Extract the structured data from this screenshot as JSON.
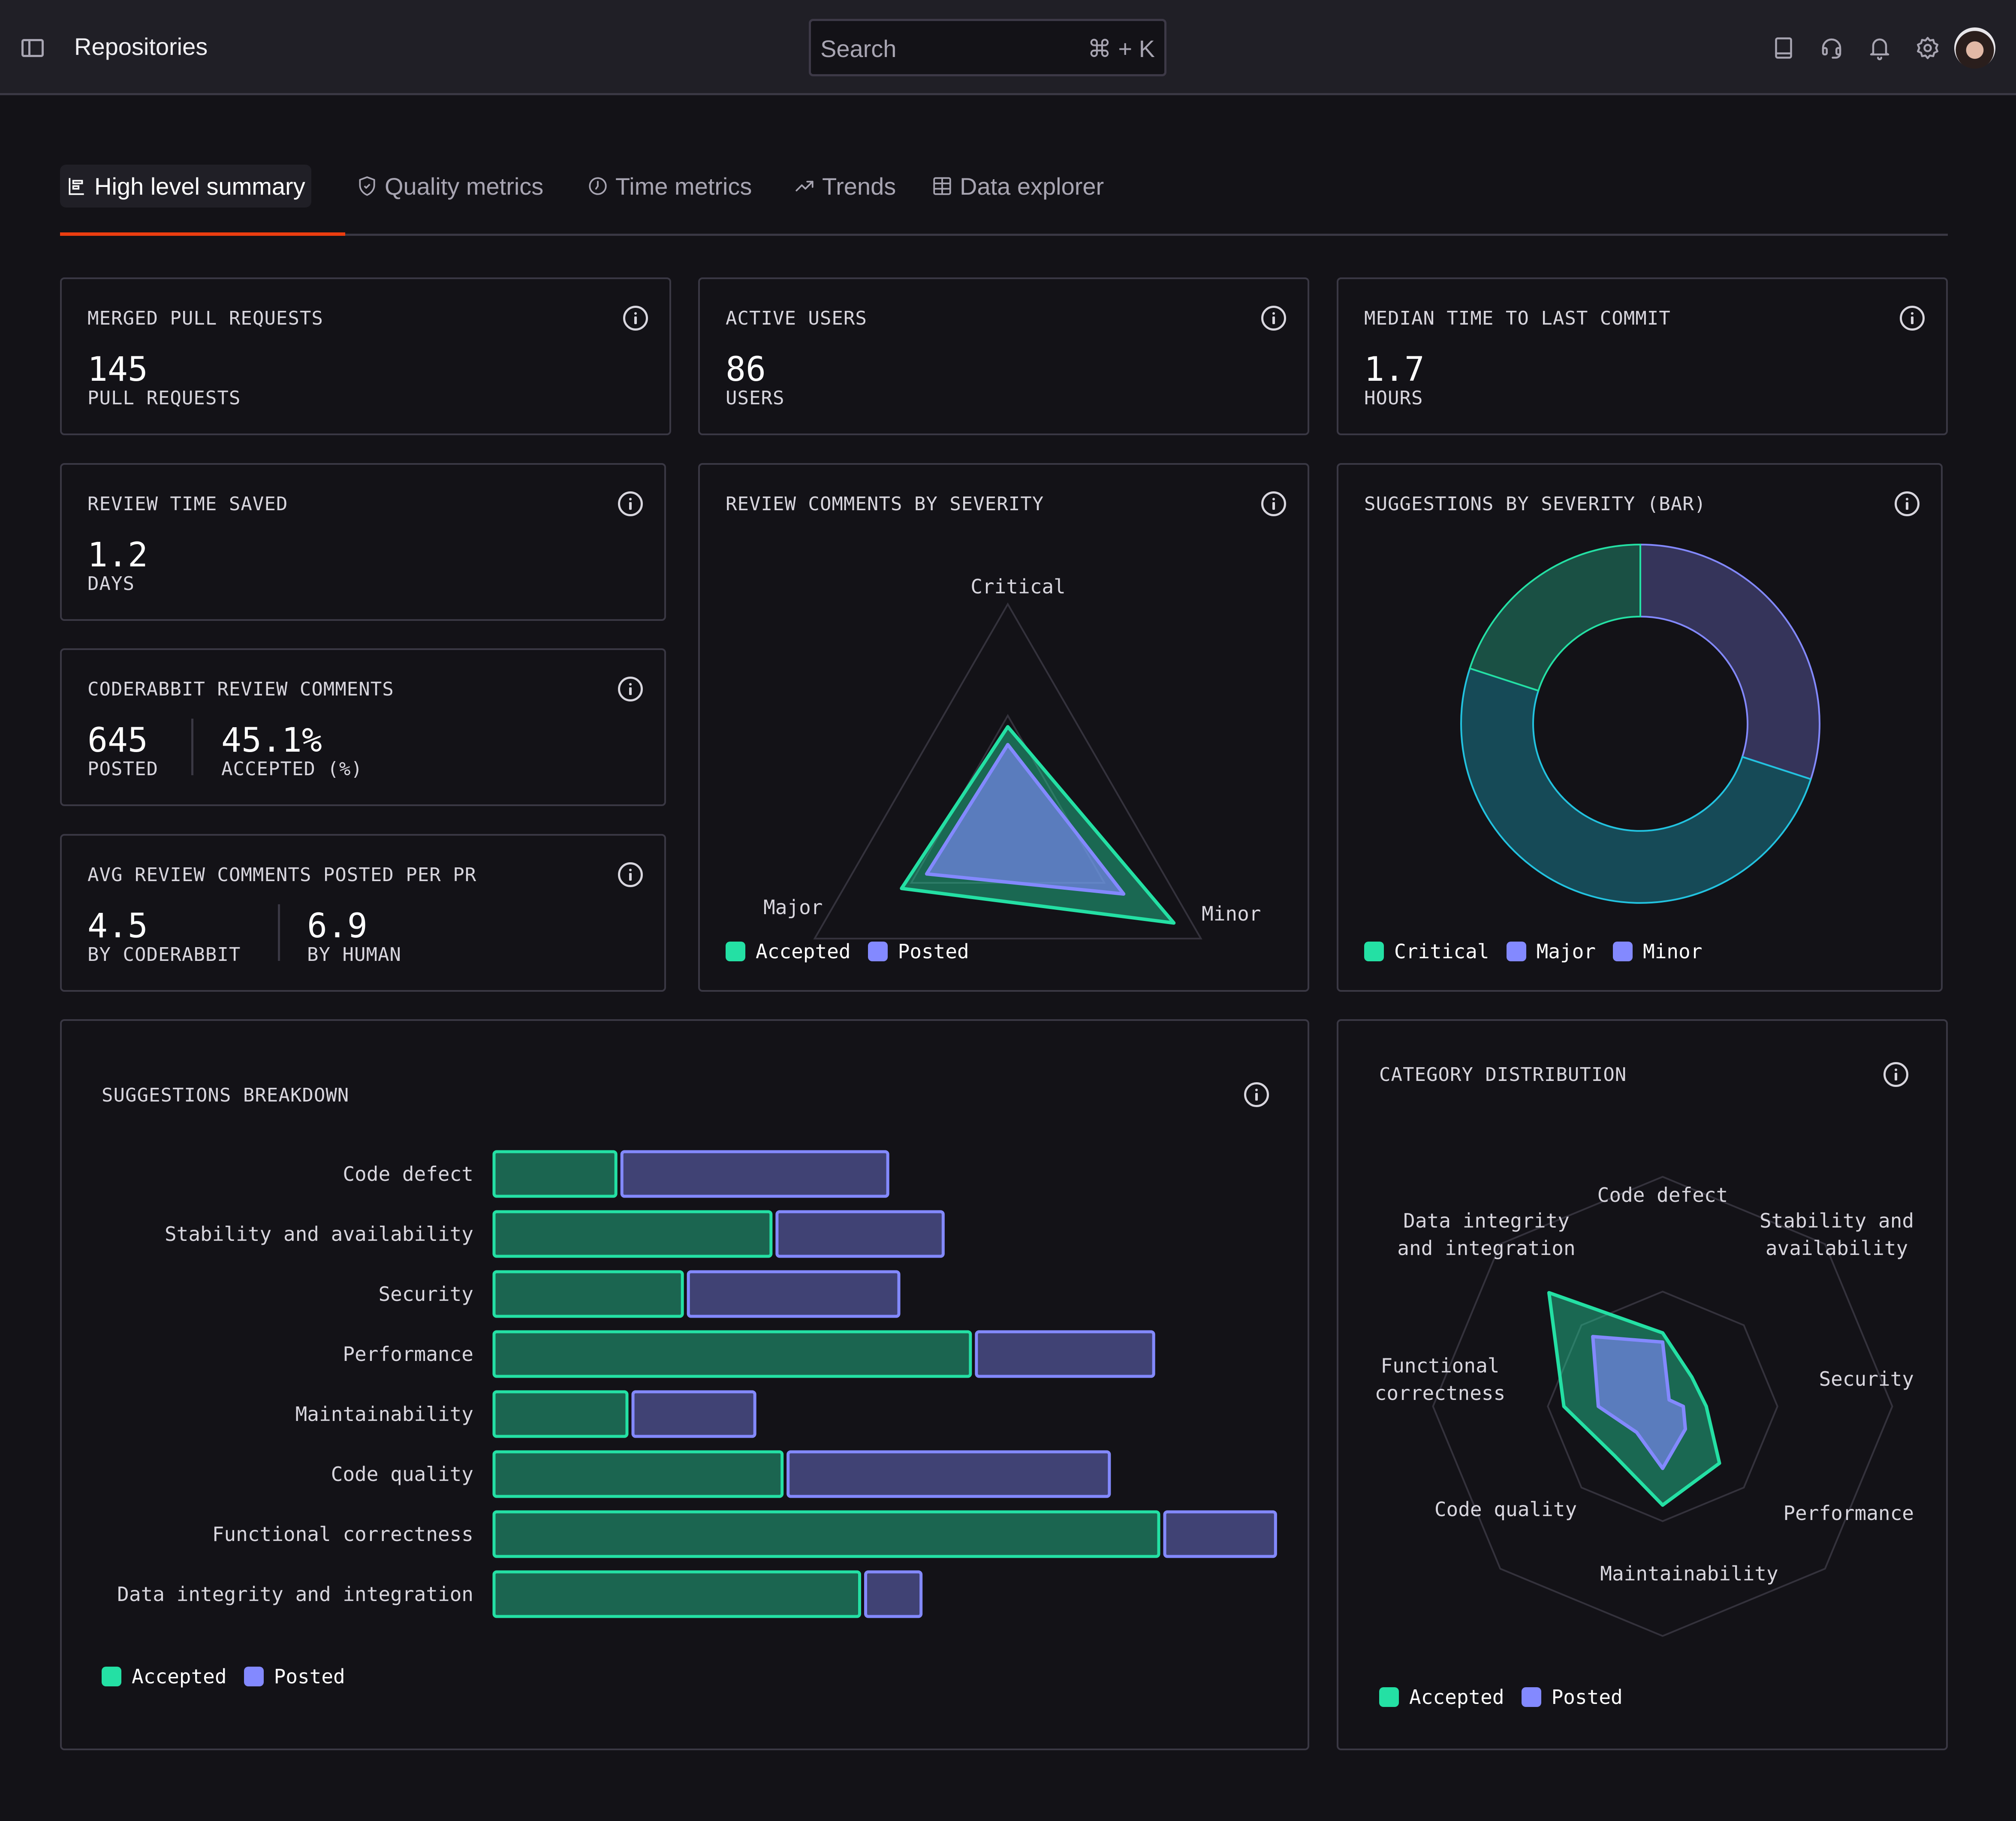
{
  "header": {
    "title": "Repositories",
    "search_placeholder": "Search",
    "search_shortcut": "⌘ + K",
    "icons": [
      "docs-book-icon",
      "support-headset-icon",
      "notifications-bell-icon",
      "settings-gear-icon"
    ],
    "avatar_alt": "User avatar"
  },
  "tabs": [
    {
      "label": "High level summary",
      "icon": "summary-chart-icon",
      "active": true
    },
    {
      "label": "Quality metrics",
      "icon": "shield-check-icon",
      "active": false
    },
    {
      "label": "Time metrics",
      "icon": "clock-icon",
      "active": false
    },
    {
      "label": "Trends",
      "icon": "trend-up-icon",
      "active": false
    },
    {
      "label": "Data explorer",
      "icon": "table-grid-icon",
      "active": false
    }
  ],
  "colors": {
    "accent": "#ec3d0f",
    "accepted": "#24e0a4",
    "posted": "#8389ff",
    "minor": "#22c3e0"
  },
  "kpis": {
    "merged_prs": {
      "title": "MERGED PULL REQUESTS",
      "value": "145",
      "unit": "PULL REQUESTS"
    },
    "active_users": {
      "title": "ACTIVE USERS",
      "value": "86",
      "unit": "USERS"
    },
    "median_time": {
      "title": "MEDIAN TIME TO LAST COMMIT",
      "value": "1.7",
      "unit": "HOURS"
    },
    "review_time_saved": {
      "title": "REVIEW TIME SAVED",
      "value": "1.2",
      "unit": "DAYS"
    },
    "coderabbit_comments": {
      "title": "CODERABBIT REVIEW COMMENTS",
      "posted_value": "645",
      "posted_label": "POSTED",
      "accepted_value": "45.1%",
      "accepted_label": "ACCEPTED (%)"
    },
    "avg_comments": {
      "title": "AVG REVIEW COMMENTS POSTED PER PR",
      "coderabbit_value": "4.5",
      "coderabbit_label": "BY CODERABBIT",
      "human_value": "6.9",
      "human_label": "BY HUMAN"
    }
  },
  "chart_data": [
    {
      "id": "severity-radar",
      "type": "radar",
      "title": "REVIEW COMMENTS BY SEVERITY",
      "axes": [
        "Critical",
        "Minor",
        "Major"
      ],
      "range": [
        0,
        100
      ],
      "rings": 2,
      "series": [
        {
          "name": "Accepted",
          "values": [
            45,
            86,
            55
          ]
        },
        {
          "name": "Posted",
          "values": [
            37,
            60,
            42
          ]
        }
      ],
      "legend": [
        "Accepted",
        "Posted"
      ],
      "legend_position": "bottom-left"
    },
    {
      "id": "severity-donut",
      "type": "pie",
      "title": "SUGGESTIONS BY SEVERITY (BAR)",
      "slices": [
        {
          "name": "Major",
          "value": 30
        },
        {
          "name": "Minor",
          "value": 50
        },
        {
          "name": "Critical",
          "value": 20
        }
      ],
      "legend": [
        "Critical",
        "Major",
        "Minor"
      ],
      "legend_position": "bottom-left"
    },
    {
      "id": "suggestions-breakdown",
      "type": "bar",
      "orientation": "horizontal-stacked",
      "title": "SUGGESTIONS BREAKDOWN",
      "categories": [
        "Code defect",
        "Stability and availability",
        "Security",
        "Performance",
        "Maintainability",
        "Code quality",
        "Functional correctness",
        "Data integrity and integration"
      ],
      "series": [
        {
          "name": "Accepted",
          "values": [
            11,
            25,
            17,
            43,
            12,
            26,
            60,
            33
          ]
        },
        {
          "name": "Posted",
          "values": [
            24,
            15,
            19,
            16,
            11,
            29,
            10,
            5
          ]
        }
      ],
      "xlim": [
        0,
        72
      ],
      "legend": [
        "Accepted",
        "Posted"
      ],
      "legend_position": "bottom-left"
    },
    {
      "id": "category-radar",
      "type": "radar",
      "title": "CATEGORY DISTRIBUTION",
      "axes": [
        "Code defect",
        "Stability and availability",
        "Security",
        "Performance",
        "Maintainability",
        "Code quality",
        "Functional correctness",
        "Data integrity and integration"
      ],
      "axis_label_lines": [
        [
          "Code defect"
        ],
        [
          "Stability and",
          "availability"
        ],
        [
          "Security"
        ],
        [
          "Performance"
        ],
        [
          "Maintainability"
        ],
        [
          "Code quality"
        ],
        [
          "Functional",
          "correctness"
        ],
        [
          "Data integrity",
          "and integration"
        ]
      ],
      "range": [
        0,
        100
      ],
      "rings": 2,
      "series": [
        {
          "name": "Accepted",
          "values": [
            32,
            18,
            19,
            35,
            43,
            30,
            43,
            70
          ]
        },
        {
          "name": "Posted",
          "values": [
            28,
            4,
            9,
            14,
            27,
            16,
            28,
            43
          ]
        }
      ],
      "legend": [
        "Accepted",
        "Posted"
      ],
      "legend_position": "bottom-left"
    }
  ]
}
